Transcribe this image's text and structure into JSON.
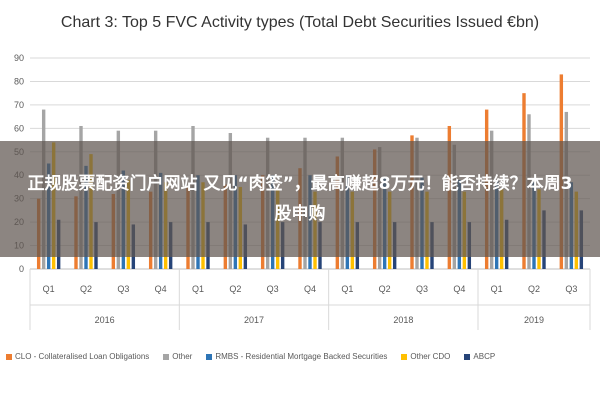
{
  "chart_data": {
    "type": "bar",
    "title": "Chart 3: Top 5 FVC Activity types (Total Debt Securities Issued €bn)",
    "xlabel": "",
    "ylabel": "",
    "ylim": [
      0,
      90
    ],
    "yticks": [
      "0",
      "10",
      "20",
      "30",
      "40",
      "50",
      "60",
      "70",
      "80",
      "90"
    ],
    "grid": true,
    "legend_position": "bottom",
    "categories": [
      "Q1",
      "Q2",
      "Q3",
      "Q4",
      "Q1",
      "Q2",
      "Q3",
      "Q4",
      "Q1",
      "Q2",
      "Q3",
      "Q4",
      "Q1",
      "Q2",
      "Q3"
    ],
    "years": [
      {
        "label": "2016",
        "quarters": 4
      },
      {
        "label": "2017",
        "quarters": 4
      },
      {
        "label": "2018",
        "quarters": 4
      },
      {
        "label": "2019",
        "quarters": 3
      }
    ],
    "series": [
      {
        "name": "CLO - Collateralised Loan Obligations",
        "color": "#ED7D31",
        "values": [
          30,
          31,
          32,
          33,
          35,
          36,
          40,
          43,
          48,
          51,
          57,
          61,
          68,
          75,
          83
        ]
      },
      {
        "name": "Other",
        "color": "#A5A5A5",
        "values": [
          68,
          61,
          59,
          59,
          61,
          58,
          56,
          56,
          56,
          52,
          56,
          53,
          59,
          66,
          67
        ]
      },
      {
        "name": "RMBS - Residential Mortgage Backed Securities",
        "color": "#2E75B6",
        "values": [
          45,
          44,
          42,
          41,
          40,
          40,
          40,
          40,
          40,
          39,
          39,
          38,
          38,
          37,
          37
        ]
      },
      {
        "name": "Other CDO",
        "color": "#FFC000",
        "values": [
          54,
          49,
          38,
          37,
          37,
          35,
          34,
          33,
          33,
          33,
          33,
          33,
          34,
          34,
          33
        ]
      },
      {
        "name": "ABCP",
        "color": "#264478",
        "values": [
          21,
          20,
          19,
          20,
          20,
          19,
          20,
          20,
          20,
          20,
          20,
          20,
          21,
          25,
          25
        ]
      }
    ]
  },
  "overlay": {
    "text": "正规股票配资门户网站 又见“肉签”，最高赚超8万元！能否持续？本周3股申购"
  }
}
